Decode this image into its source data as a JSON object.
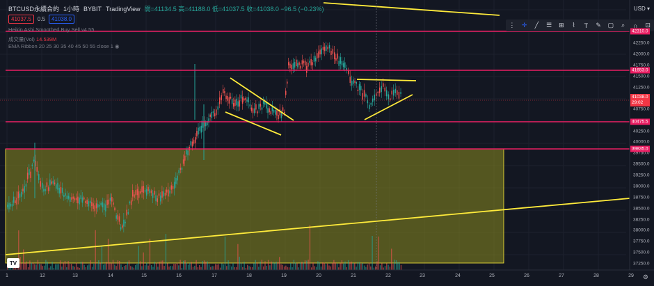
{
  "header": {
    "symbol": "BTCUSD永續合約",
    "interval": "1小時",
    "exchange": "BYBIT",
    "source": "TradingView",
    "ohlc": "開=41134.5 高=41188.0 低=41037.5 收=41038.0 −96.5 (−0.23%)"
  },
  "price_boxes": {
    "sell": "41037.5",
    "spread": "0.5",
    "buy": "41038.0"
  },
  "indicators": {
    "heikin": "Heikin Ashi Smoothed Buy Sell v4.55",
    "volume_label": "成交量(Vol)",
    "volume_value": "14.539M",
    "ema": "EMA Ribbon 20 25 30 35 40 45 50 55 close 1"
  },
  "currency": "USD",
  "toolbar_icons": [
    "crosshair-icon",
    "trendline-icon",
    "fib-icon",
    "pattern-icon",
    "prediction-icon",
    "text-icon",
    "brush-icon",
    "measure-icon",
    "zoom-icon",
    "magnet-icon",
    "lock-icon"
  ],
  "price_ticks": [
    "42250.0",
    "42000.0",
    "41750.0",
    "41500.0",
    "41250.0",
    "40750.0",
    "40250.0",
    "40000.0",
    "39750.0",
    "39500.0",
    "39250.0",
    "39000.0",
    "38750.0",
    "38500.0",
    "38250.0",
    "38000.0",
    "37750.0",
    "37500.0",
    "37250.0"
  ],
  "price_labels": {
    "top": "42310.0",
    "r1": "41653.0",
    "cur": "41038.0",
    "countdown": "29:02",
    "s1": "40475.5",
    "s2": "39835.0"
  },
  "date_ticks": [
    "1",
    "12",
    "13",
    "14",
    "15",
    "16",
    "17",
    "18",
    "19",
    "20",
    "21",
    "22",
    "23",
    "24",
    "25",
    "26",
    "27",
    "28",
    "29"
  ],
  "colors": {
    "up": "#26a69a",
    "down": "#ef5350",
    "hline": "#e91e63",
    "trend": "#ffeb3b",
    "zone": "#8a8a1f"
  }
}
